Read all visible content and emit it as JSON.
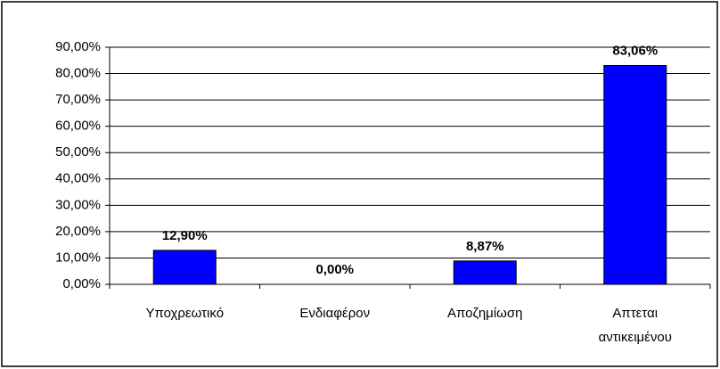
{
  "chart_data": {
    "type": "bar",
    "categories": [
      "Υποχρεωτικό",
      "Ενδιαφέρον",
      "Αποζημίωση",
      "Απτεται αντικειμένου"
    ],
    "values": [
      12.9,
      0.0,
      8.87,
      83.06
    ],
    "value_labels": [
      "12,90%",
      "0,00%",
      "8,87%",
      "83,06%"
    ],
    "color": "#0000ff",
    "ylim": [
      0,
      90
    ],
    "yticks": [
      {
        "value": 0,
        "label": "0,00%"
      },
      {
        "value": 10,
        "label": "10,00%"
      },
      {
        "value": 20,
        "label": "20,00%"
      },
      {
        "value": 30,
        "label": "30,00%"
      },
      {
        "value": 40,
        "label": "40,00%"
      },
      {
        "value": 50,
        "label": "50,00%"
      },
      {
        "value": 60,
        "label": "60,00%"
      },
      {
        "value": 70,
        "label": "70,00%"
      },
      {
        "value": 80,
        "label": "80,00%"
      },
      {
        "value": 90,
        "label": "90,00%"
      }
    ],
    "grid": true
  }
}
